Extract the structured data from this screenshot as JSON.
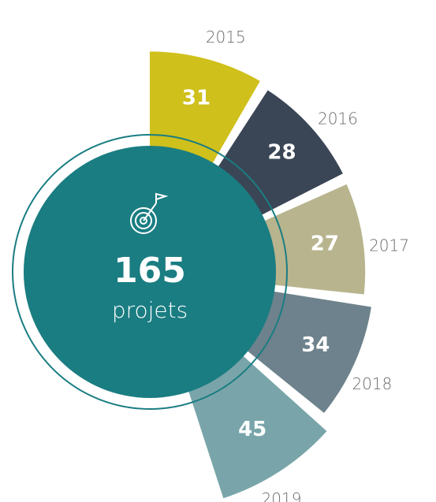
{
  "chart_data": {
    "type": "radial-bar",
    "categories": [
      "2015",
      "2016",
      "2017",
      "2018",
      "2019"
    ],
    "values": [
      31,
      28,
      27,
      34,
      45
    ],
    "colors": [
      "#cfc01c",
      "#3a4656",
      "#b8b48e",
      "#6d828c",
      "#79a5aa"
    ],
    "center_value": 165,
    "center_label": "projets",
    "center_color": "#1a7d82"
  }
}
